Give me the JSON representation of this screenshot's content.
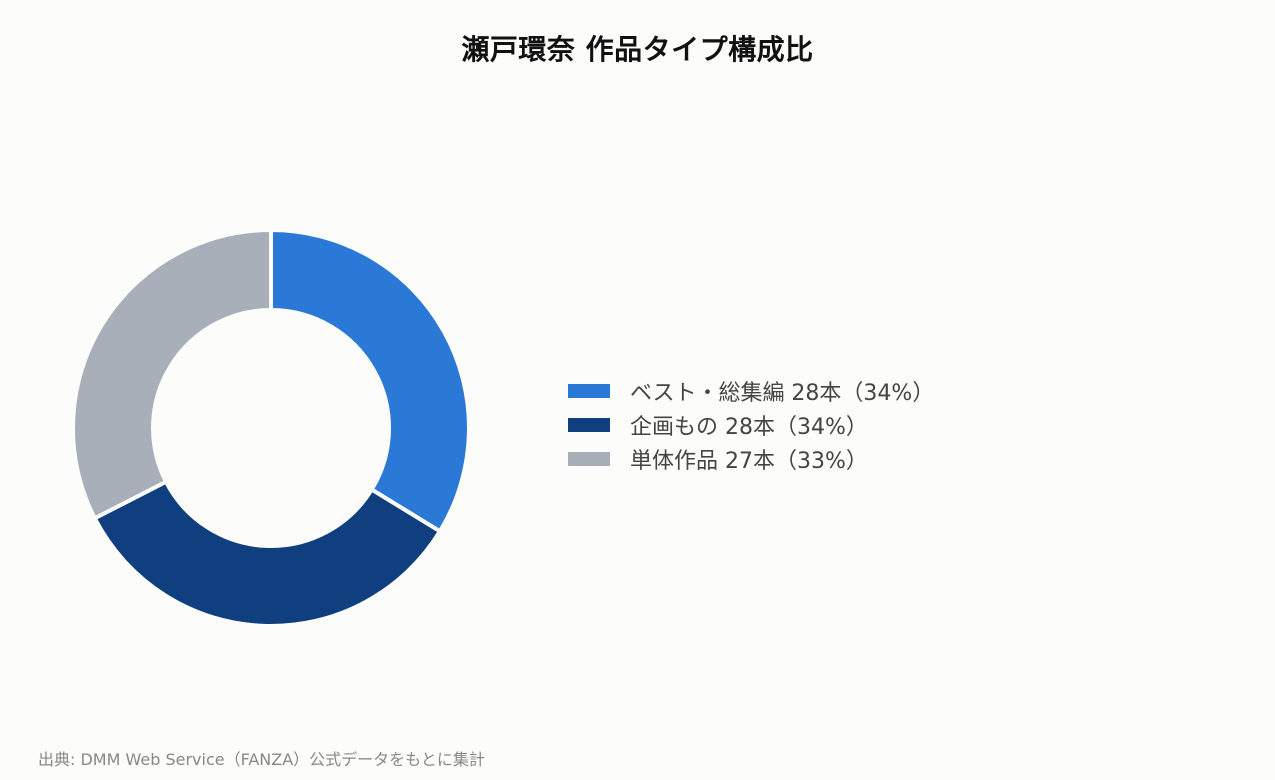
{
  "chart_data": {
    "type": "pie",
    "variant": "donut",
    "title": "瀬戸環奈 作品タイプ構成比",
    "categories": [
      "ベスト・総集編",
      "企画もの",
      "単体作品"
    ],
    "values": [
      28,
      28,
      27
    ],
    "percent_labels": [
      "34%",
      "34%",
      "33%"
    ],
    "colors": [
      "#2b79d6",
      "#0f3f7f",
      "#a8afb8"
    ],
    "legend_labels": [
      "ベスト・総集編 28本（34%）",
      "企画もの 28本（34%）",
      "単体作品 27本（33%）"
    ],
    "legend_position": "right",
    "source": "出典: DMM Web Service（FANZA）公式データをもとに集計"
  }
}
